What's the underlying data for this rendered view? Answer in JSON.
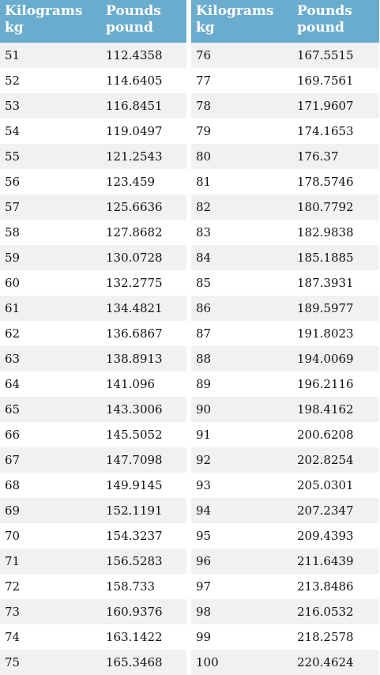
{
  "headers": {
    "col1_line1": "Kilograms",
    "col1_line2": "kg",
    "col2_line1": "Pounds",
    "col2_line2": "pound"
  },
  "left_rows": [
    [
      "51",
      "112.4358"
    ],
    [
      "52",
      "114.6405"
    ],
    [
      "53",
      "116.8451"
    ],
    [
      "54",
      "119.0497"
    ],
    [
      "55",
      "121.2543"
    ],
    [
      "56",
      "123.459"
    ],
    [
      "57",
      "125.6636"
    ],
    [
      "58",
      "127.8682"
    ],
    [
      "59",
      "130.0728"
    ],
    [
      "60",
      "132.2775"
    ],
    [
      "61",
      "134.4821"
    ],
    [
      "62",
      "136.6867"
    ],
    [
      "63",
      "138.8913"
    ],
    [
      "64",
      "141.096"
    ],
    [
      "65",
      "143.3006"
    ],
    [
      "66",
      "145.5052"
    ],
    [
      "67",
      "147.7098"
    ],
    [
      "68",
      "149.9145"
    ],
    [
      "69",
      "152.1191"
    ],
    [
      "70",
      "154.3237"
    ],
    [
      "71",
      "156.5283"
    ],
    [
      "72",
      "158.733"
    ],
    [
      "73",
      "160.9376"
    ],
    [
      "74",
      "163.1422"
    ],
    [
      "75",
      "165.3468"
    ]
  ],
  "right_rows": [
    [
      "76",
      "167.5515"
    ],
    [
      "77",
      "169.7561"
    ],
    [
      "78",
      "171.9607"
    ],
    [
      "79",
      "174.1653"
    ],
    [
      "80",
      "176.37"
    ],
    [
      "81",
      "178.5746"
    ],
    [
      "82",
      "180.7792"
    ],
    [
      "83",
      "182.9838"
    ],
    [
      "84",
      "185.1885"
    ],
    [
      "85",
      "187.3931"
    ],
    [
      "86",
      "189.5977"
    ],
    [
      "87",
      "191.8023"
    ],
    [
      "88",
      "194.0069"
    ],
    [
      "89",
      "196.2116"
    ],
    [
      "90",
      "198.4162"
    ],
    [
      "91",
      "200.6208"
    ],
    [
      "92",
      "202.8254"
    ],
    [
      "93",
      "205.0301"
    ],
    [
      "94",
      "207.2347"
    ],
    [
      "95",
      "209.4393"
    ],
    [
      "96",
      "211.6439"
    ],
    [
      "97",
      "213.8486"
    ],
    [
      "98",
      "216.0532"
    ],
    [
      "99",
      "218.2578"
    ],
    [
      "100",
      "220.4624"
    ]
  ],
  "colors": {
    "header_bg": "#6aaccd",
    "header_text": "#ffffff",
    "row_alt_bg": "#f0f1f3"
  }
}
